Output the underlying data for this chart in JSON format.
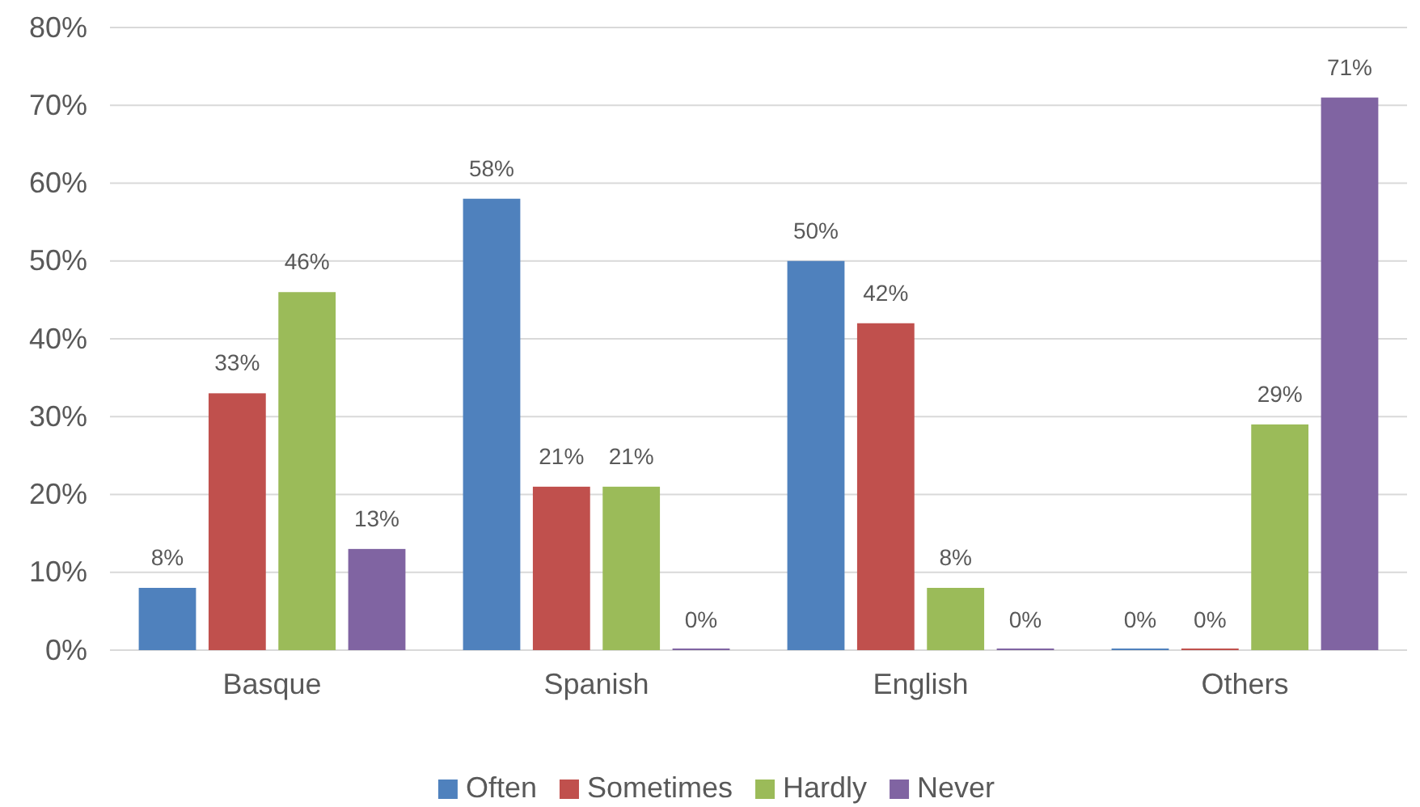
{
  "chart_data": {
    "type": "bar",
    "categories": [
      "Basque",
      "Spanish",
      "English",
      "Others"
    ],
    "series": [
      {
        "name": "Often",
        "color": "#4f81bd",
        "values": [
          8,
          58,
          50,
          0
        ],
        "value_labels": [
          "8%",
          "58%",
          "50%",
          "0%"
        ]
      },
      {
        "name": "Sometimes",
        "color": "#c0504d",
        "values": [
          33,
          21,
          42,
          0
        ],
        "value_labels": [
          "33%",
          "21%",
          "42%",
          "0%"
        ]
      },
      {
        "name": "Hardly",
        "color": "#9bbb59",
        "values": [
          46,
          21,
          8,
          29
        ],
        "value_labels": [
          "46%",
          "21%",
          "8%",
          "29%"
        ]
      },
      {
        "name": "Never",
        "color": "#8064a2",
        "values": [
          13,
          0,
          0,
          71
        ],
        "value_labels": [
          "13%",
          "0%",
          "0%",
          "71%"
        ]
      }
    ],
    "ylim": [
      0,
      80
    ],
    "yticks": [
      {
        "value": 0,
        "label": "0%"
      },
      {
        "value": 10,
        "label": "10%"
      },
      {
        "value": 20,
        "label": "20%"
      },
      {
        "value": 30,
        "label": "30%"
      },
      {
        "value": 40,
        "label": "40%"
      },
      {
        "value": 50,
        "label": "50%"
      },
      {
        "value": 60,
        "label": "60%"
      },
      {
        "value": 70,
        "label": "70%"
      },
      {
        "value": 80,
        "label": "80%"
      }
    ],
    "grid": "y",
    "legend": "bottom"
  }
}
